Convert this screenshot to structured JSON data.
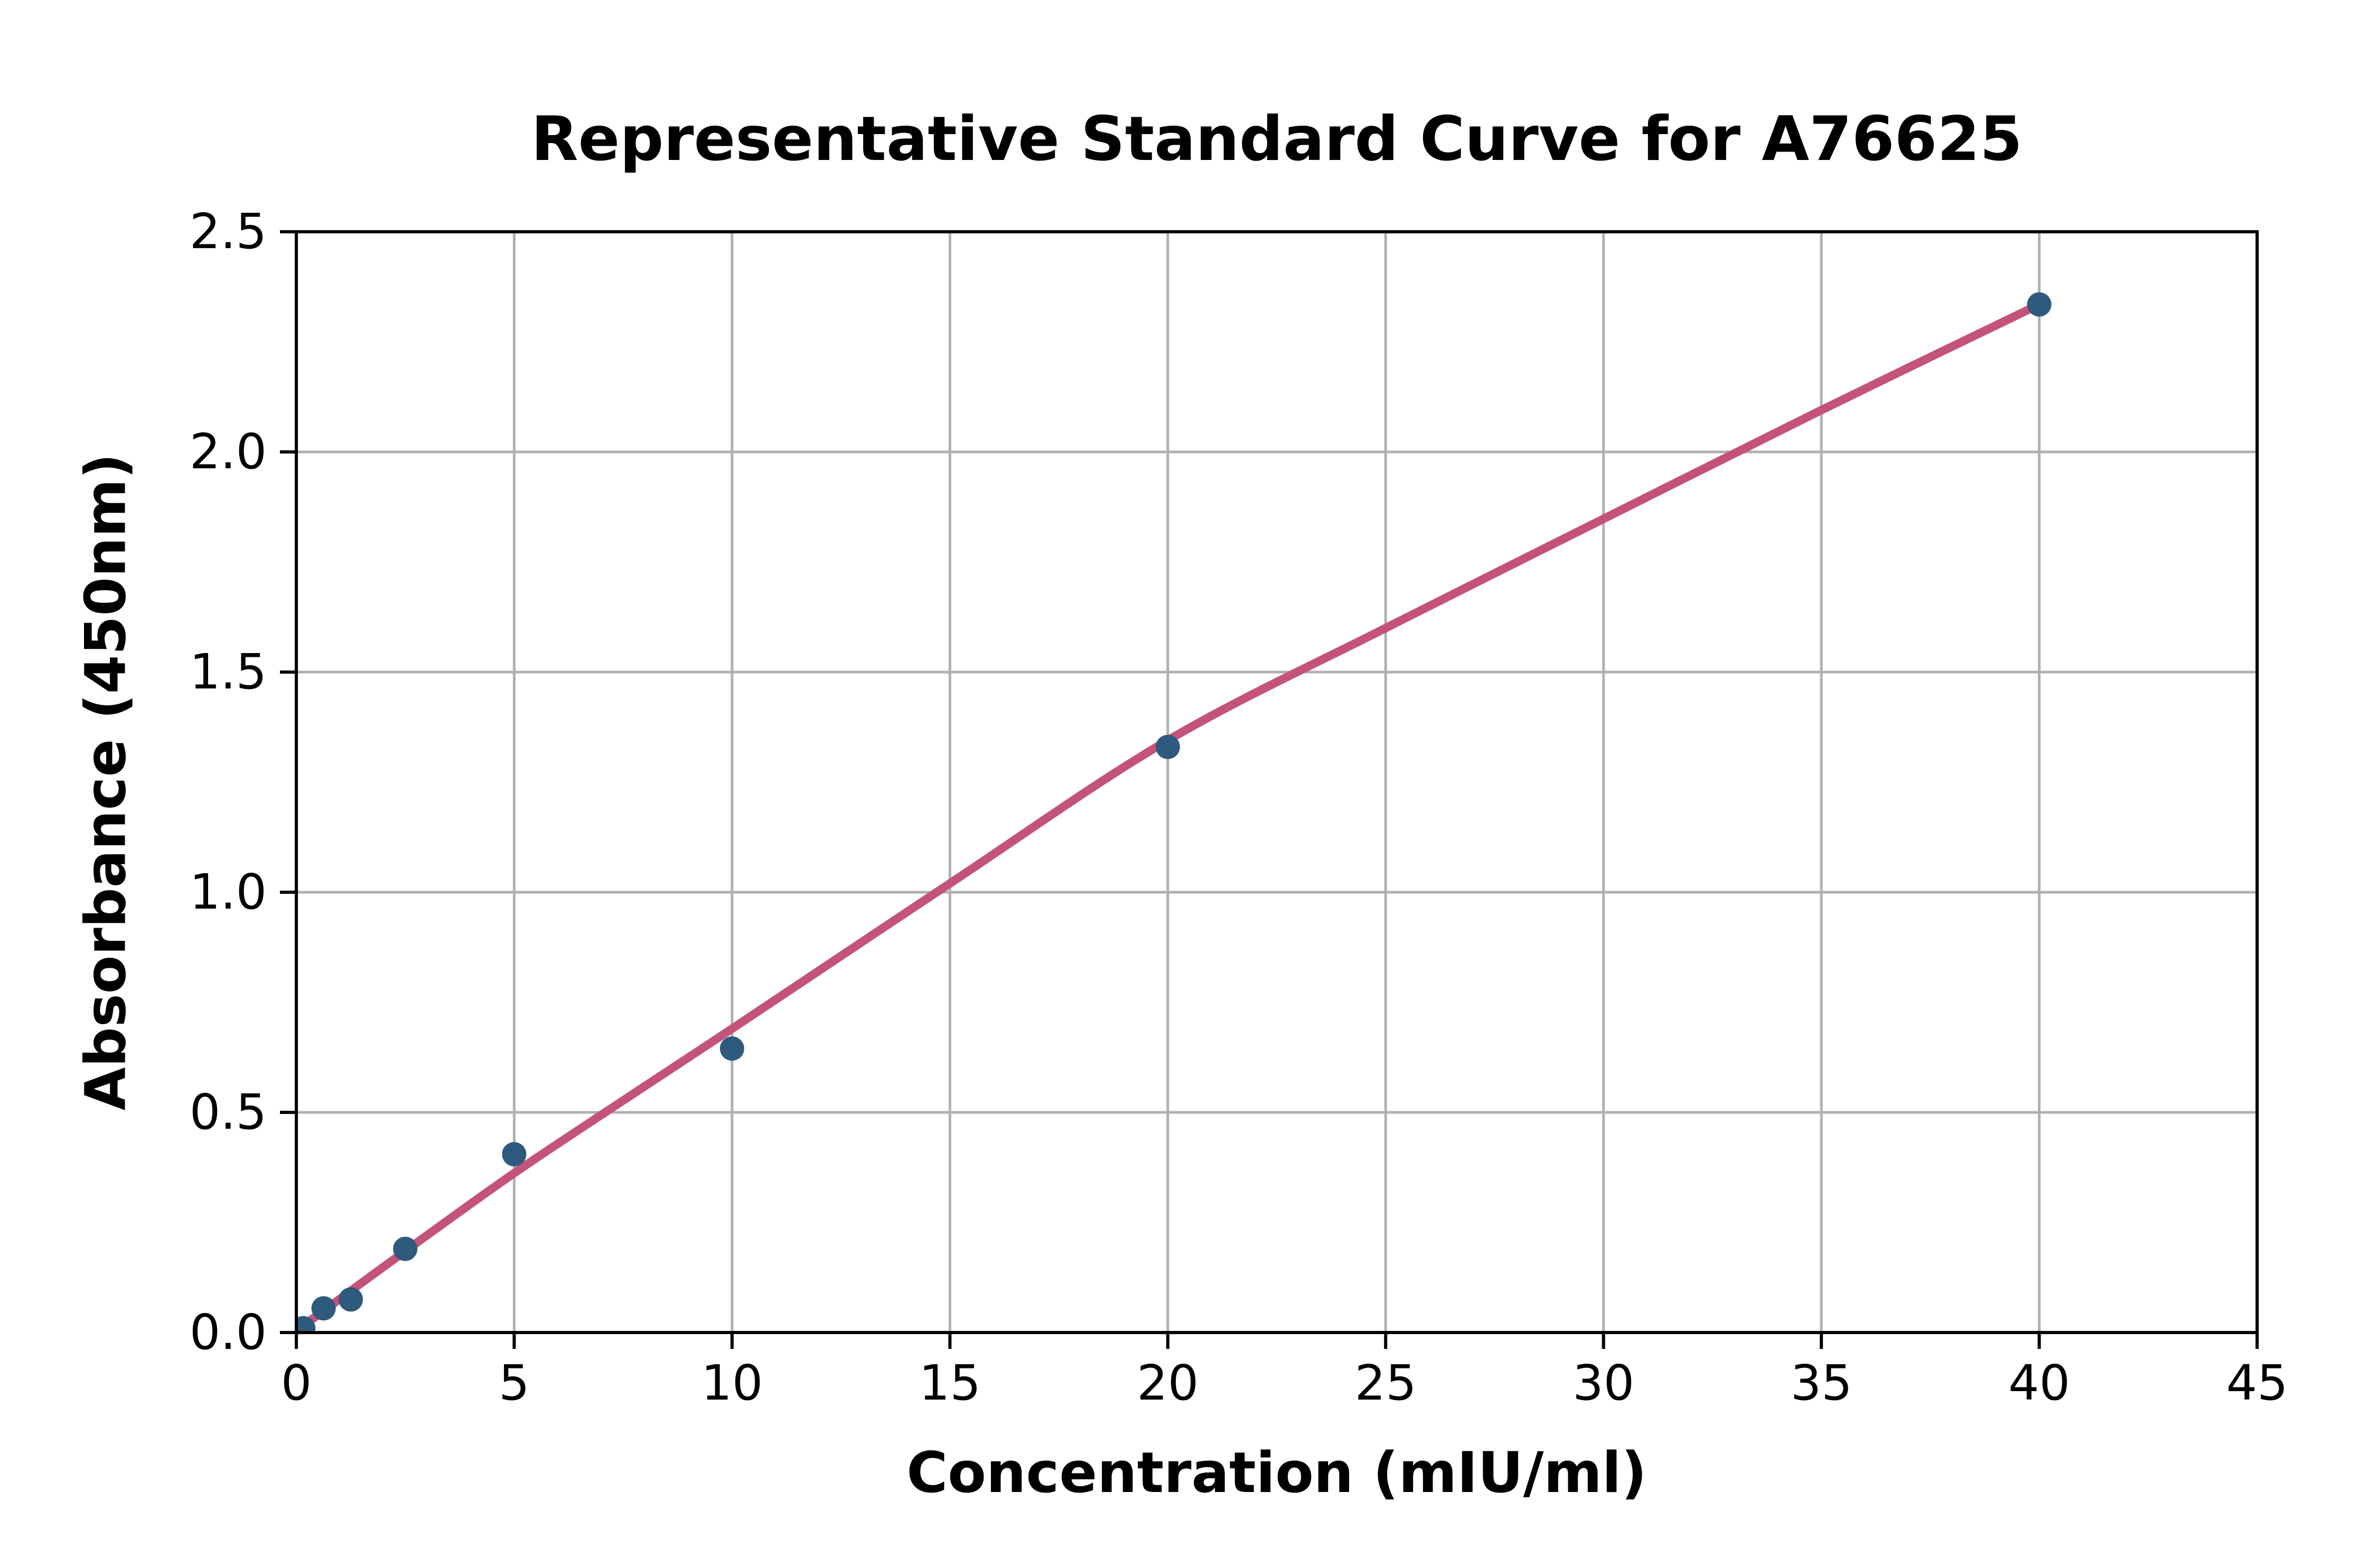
{
  "chart_data": {
    "type": "scatter",
    "title": "Representative Standard Curve for A76625",
    "xlabel": "Concentration (mIU/ml)",
    "ylabel": "Absorbance (450nm)",
    "xlim": [
      0,
      45
    ],
    "ylim": [
      0,
      2.5
    ],
    "x_ticks": [
      "0",
      "5",
      "10",
      "15",
      "20",
      "25",
      "30",
      "35",
      "40",
      "45"
    ],
    "x_tick_values": [
      0,
      5,
      10,
      15,
      20,
      25,
      30,
      35,
      40,
      45
    ],
    "y_ticks": [
      "0.0",
      "0.5",
      "1.0",
      "1.5",
      "2.0",
      "2.5"
    ],
    "y_tick_values": [
      0,
      0.5,
      1.0,
      1.5,
      2.0,
      2.5
    ],
    "grid": true,
    "legend": null,
    "points": [
      {
        "x": 0.16,
        "y": 0.01
      },
      {
        "x": 0.625,
        "y": 0.055
      },
      {
        "x": 1.25,
        "y": 0.075
      },
      {
        "x": 2.5,
        "y": 0.19
      },
      {
        "x": 5,
        "y": 0.405
      },
      {
        "x": 10,
        "y": 0.645
      },
      {
        "x": 20,
        "y": 1.33
      },
      {
        "x": 40,
        "y": 2.335
      }
    ],
    "fit_curve": [
      [
        0,
        0.004
      ],
      [
        2.5,
        0.185
      ],
      [
        5,
        0.362
      ],
      [
        7.5,
        0.527
      ],
      [
        10,
        0.69
      ],
      [
        15,
        1.02
      ],
      [
        20,
        1.345
      ],
      [
        25,
        1.6
      ],
      [
        30,
        1.848
      ],
      [
        35,
        2.095
      ],
      [
        40,
        2.335
      ]
    ],
    "colors": {
      "marker": "#2e5a7d",
      "curve": "#c4537a",
      "grid": "#b0b0b0",
      "axis": "#000000",
      "background": "#ffffff"
    }
  }
}
